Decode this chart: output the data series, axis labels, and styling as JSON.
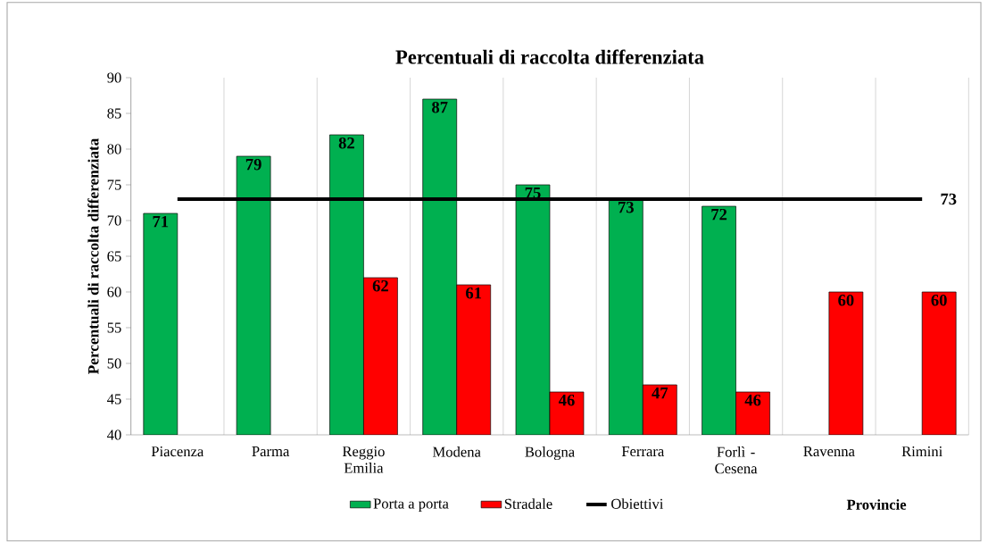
{
  "chart_data": {
    "type": "bar",
    "title": "Percentuali di raccolta differenziata",
    "ylabel": "Percentuali di raccolta differenziata",
    "xlabel": "Provincie",
    "categories": [
      "Piacenza",
      "Parma",
      "Reggio Emilia",
      "Modena",
      "Bologna",
      "Ferrara",
      "Forlì - Cesena",
      "Ravenna",
      "Rimini"
    ],
    "series": [
      {
        "name": "Porta a porta",
        "color": "#00b050",
        "values": [
          71,
          79,
          82,
          87,
          75,
          73,
          72,
          null,
          null
        ],
        "value_labels": [
          "71",
          "79",
          "82",
          "87",
          "75",
          "73",
          "72",
          null,
          null
        ]
      },
      {
        "name": "Stradale",
        "color": "#ff0000",
        "values": [
          null,
          null,
          62,
          61,
          46,
          47,
          46,
          60,
          60
        ],
        "value_labels": [
          null,
          null,
          "62",
          "61",
          "46",
          "47",
          "46",
          "60",
          "60"
        ]
      },
      {
        "name": "Obiettivi",
        "type": "line",
        "color": "#000000",
        "values": [
          73,
          73,
          73,
          73,
          73,
          73,
          73,
          73,
          73
        ],
        "value_labels": [
          null,
          null,
          null,
          null,
          null,
          null,
          null,
          null,
          "73"
        ]
      }
    ],
    "ylim": [
      40,
      90
    ],
    "yticks": [
      40,
      45,
      50,
      55,
      60,
      65,
      70,
      75,
      80,
      85,
      90
    ],
    "grid": "x",
    "legend": "bottom"
  }
}
